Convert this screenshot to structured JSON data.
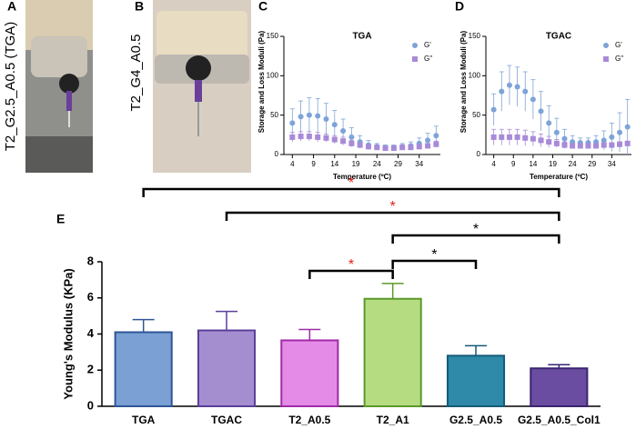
{
  "panels": [
    "A",
    "B",
    "C",
    "D",
    "E"
  ],
  "photo_labels": [
    "T2_G2.5_A0.5 (TGA)",
    "T2_G4_A0.5"
  ],
  "chart_data": [
    {
      "type": "line",
      "title": "TGA",
      "xlabel": "Temperature (ºC)",
      "ylabel": "Storage and Loss Moduli (Pa)",
      "x": [
        4,
        6,
        8,
        10,
        12,
        14,
        16,
        18,
        20,
        22,
        24,
        26,
        28,
        30,
        32,
        34,
        36,
        38
      ],
      "xlim": [
        2,
        39
      ],
      "xticks": [
        4,
        9,
        14,
        19,
        24,
        29,
        34
      ],
      "ylim": [
        0,
        150
      ],
      "yticks": [
        0,
        50,
        100,
        150
      ],
      "legend": "top-right",
      "series": [
        {
          "name": "G'",
          "color": "#7ea3d8",
          "marker": "circle",
          "values": [
            40,
            48,
            50,
            49,
            45,
            38,
            30,
            22,
            16,
            12,
            10,
            9,
            9,
            10,
            11,
            14,
            18,
            24
          ],
          "errors": [
            18,
            20,
            22,
            22,
            20,
            18,
            15,
            12,
            8,
            6,
            4,
            3,
            3,
            4,
            5,
            7,
            9,
            12
          ]
        },
        {
          "name": "G''",
          "color": "#a88ad8",
          "marker": "square",
          "values": [
            22,
            23,
            23,
            22,
            21,
            19,
            17,
            14,
            12,
            10,
            9,
            8,
            8,
            9,
            9,
            10,
            11,
            13
          ],
          "errors": [
            6,
            6,
            6,
            6,
            5,
            5,
            5,
            4,
            3,
            2,
            2,
            2,
            2,
            2,
            2,
            3,
            3,
            4
          ]
        }
      ]
    },
    {
      "type": "line",
      "title": "TGAC",
      "xlabel": "Temperature (ºC)",
      "ylabel": "Storage and Loss Moduli (Pa)",
      "x": [
        4,
        6,
        8,
        10,
        12,
        14,
        16,
        18,
        20,
        22,
        24,
        26,
        28,
        30,
        32,
        34,
        36,
        38
      ],
      "xlim": [
        2,
        39
      ],
      "xticks": [
        4,
        9,
        14,
        19,
        24,
        29,
        34
      ],
      "ylim": [
        0,
        150
      ],
      "yticks": [
        0,
        50,
        100,
        150
      ],
      "legend": "top-right",
      "series": [
        {
          "name": "G'",
          "color": "#7ea3d8",
          "marker": "circle",
          "values": [
            57,
            80,
            88,
            86,
            80,
            70,
            55,
            40,
            28,
            20,
            16,
            15,
            15,
            16,
            18,
            22,
            28,
            35
          ],
          "errors": [
            20,
            25,
            25,
            25,
            25,
            25,
            25,
            22,
            18,
            12,
            8,
            6,
            6,
            8,
            12,
            18,
            25,
            35
          ]
        },
        {
          "name": "G''",
          "color": "#a88ad8",
          "marker": "square",
          "values": [
            22,
            22,
            22,
            22,
            21,
            20,
            18,
            16,
            14,
            12,
            11,
            11,
            11,
            11,
            12,
            12,
            13,
            14
          ],
          "errors": [
            10,
            10,
            10,
            10,
            10,
            9,
            8,
            7,
            5,
            4,
            3,
            3,
            3,
            3,
            3,
            3,
            3,
            3
          ]
        }
      ]
    },
    {
      "type": "bar",
      "ylabel": "Young's Modulus (KPa)",
      "categories": [
        "TGA",
        "TGAC",
        "T2_A0.5",
        "T2_A1",
        "G2.5_A0.5",
        "G2.5_A0.5_Col1"
      ],
      "values": [
        4.1,
        4.2,
        3.65,
        5.95,
        2.8,
        2.1
      ],
      "errors": [
        0.7,
        1.05,
        0.6,
        0.85,
        0.55,
        0.2
      ],
      "colors": [
        "#7aa0d4",
        "#a48ed0",
        "#e48be8",
        "#b6dc82",
        "#2f8aaa",
        "#6a4da0"
      ],
      "edge_colors": [
        "#2f5597",
        "#5b3f9a",
        "#a02aa8",
        "#5a9a2a",
        "#155a78",
        "#3b2470"
      ],
      "ylim": [
        0,
        8
      ],
      "yticks": [
        0,
        2,
        4,
        6,
        8
      ],
      "significance": [
        {
          "from": 0,
          "to": 5,
          "label": "*",
          "color": "#e0201c"
        },
        {
          "from": 1,
          "to": 5,
          "label": "*",
          "color": "#e0201c"
        },
        {
          "from": 3,
          "to": 5,
          "label": "*",
          "color": "#000000"
        },
        {
          "from": 3,
          "to": 4,
          "label": "*",
          "color": "#000000"
        },
        {
          "from": 2,
          "to": 3,
          "label": "*",
          "color": "#e0201c"
        }
      ]
    }
  ]
}
